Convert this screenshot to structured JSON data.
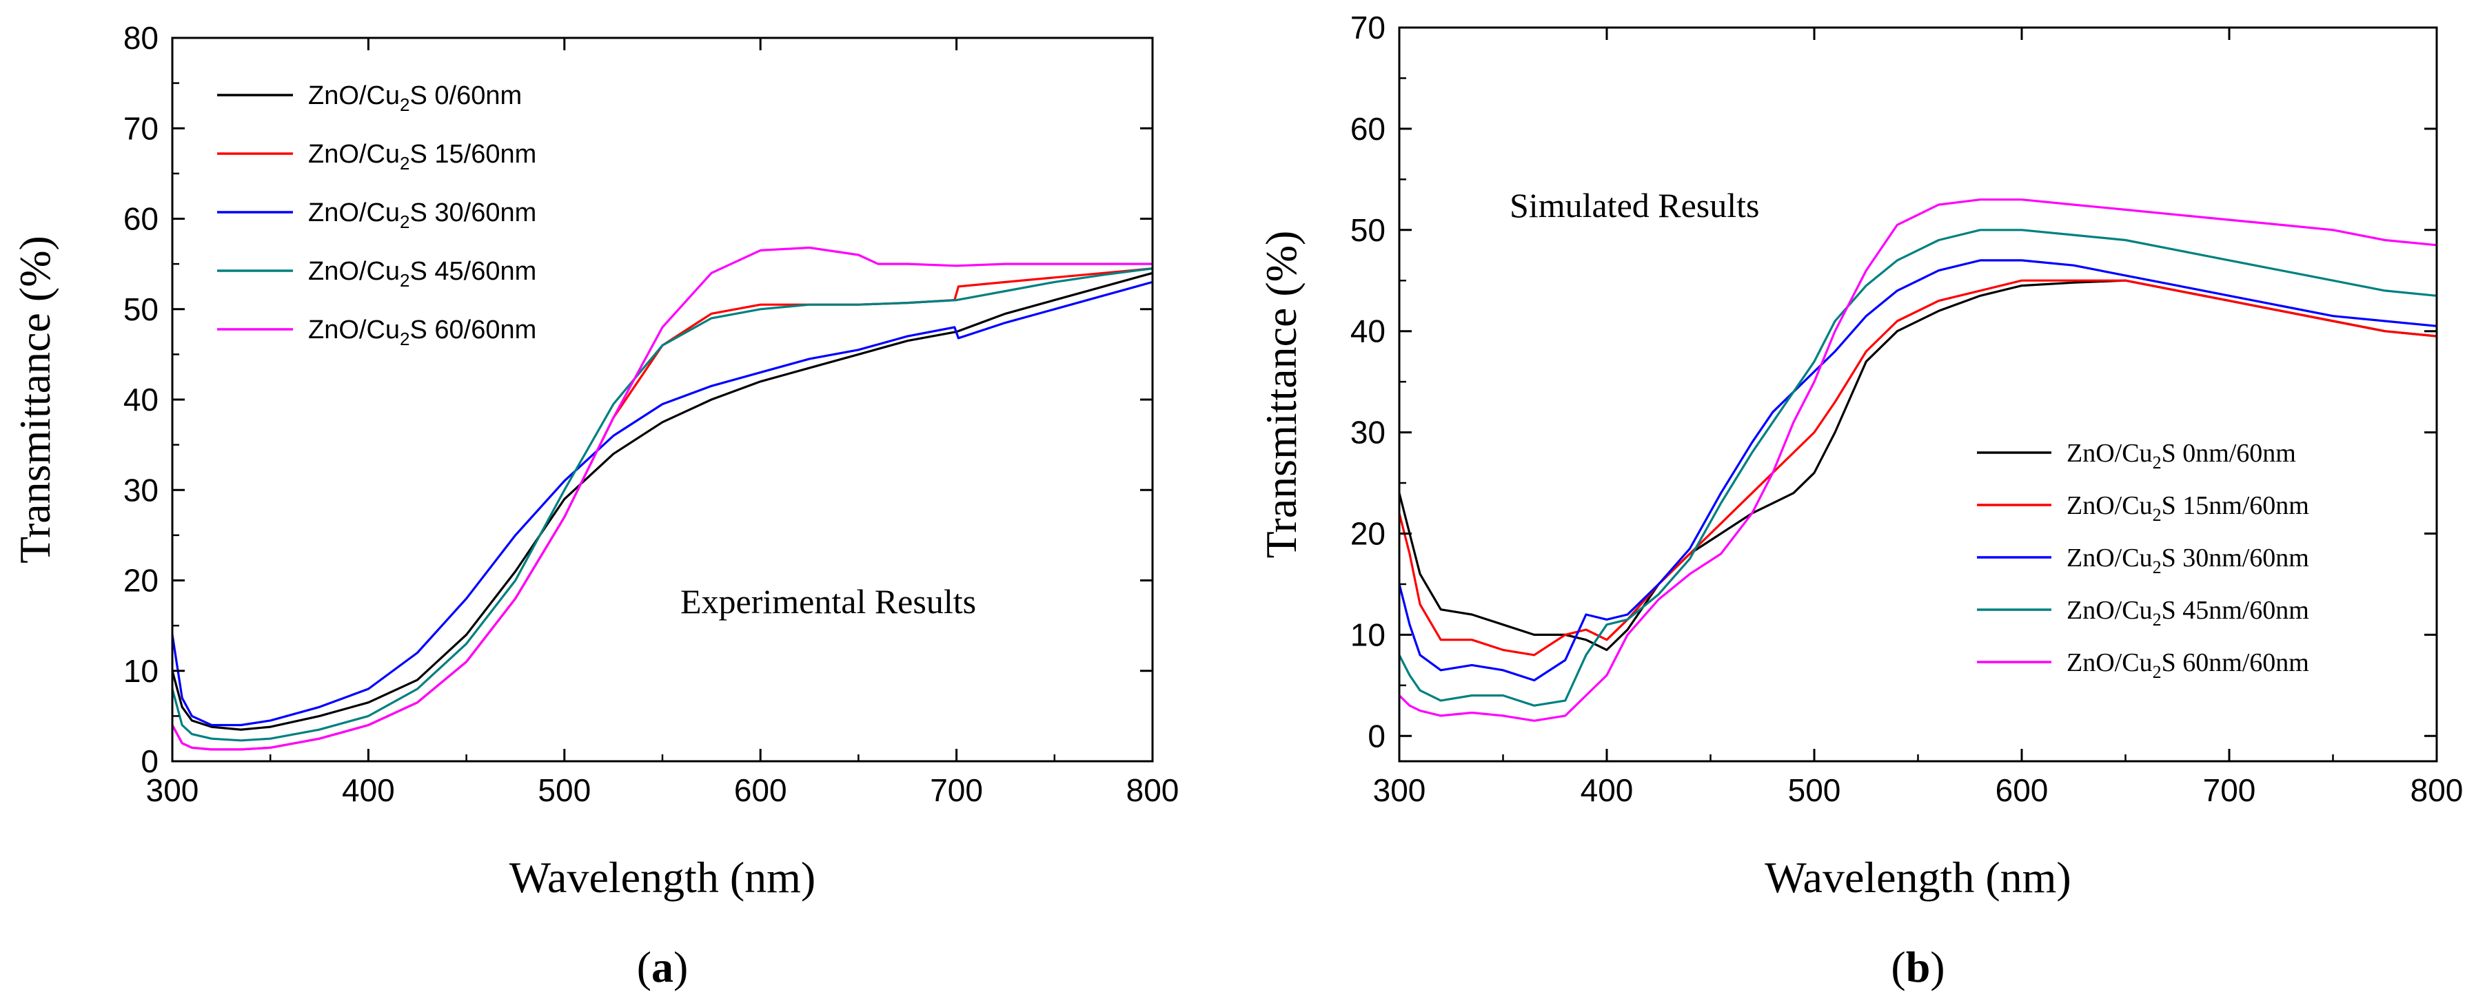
{
  "chart_data": [
    {
      "type": "line",
      "panel_label": "a",
      "xlabel": "Wavelength (nm)",
      "ylabel": "Transmittance (%)",
      "annotation": "Experimental Results",
      "xlim": [
        300,
        800
      ],
      "ylim": [
        0,
        80
      ],
      "xticks": [
        300,
        400,
        500,
        600,
        700,
        800
      ],
      "yticks": [
        0,
        10,
        20,
        30,
        40,
        50,
        60,
        70,
        80
      ],
      "legend_position": "top-left",
      "legend_style": "sans",
      "series": [
        {
          "name": "ZnO/Cu2S 0/60nm",
          "label_pre": "ZnO/Cu",
          "label_sub": "2",
          "label_post": "S 0/60nm",
          "color": "#000000",
          "x": [
            300,
            305,
            310,
            320,
            335,
            350,
            375,
            400,
            425,
            450,
            475,
            500,
            525,
            550,
            575,
            600,
            625,
            650,
            675,
            700,
            725,
            750,
            775,
            800
          ],
          "y": [
            10,
            6,
            4.5,
            3.8,
            3.5,
            3.8,
            5,
            6.5,
            9,
            14,
            21,
            29,
            34,
            37.5,
            40,
            42,
            43.5,
            45,
            46.5,
            47.5,
            49.5,
            51,
            52.5,
            54
          ]
        },
        {
          "name": "ZnO/Cu2S 15/60nm",
          "label_pre": "ZnO/Cu",
          "label_sub": "2",
          "label_post": "S 15/60nm",
          "color": "#ff0000",
          "x": [
            300,
            305,
            310,
            320,
            335,
            350,
            375,
            400,
            425,
            450,
            475,
            500,
            525,
            550,
            575,
            600,
            625,
            650,
            675,
            699,
            701,
            725,
            750,
            775,
            800
          ],
          "y": [
            4,
            2,
            1.5,
            1.3,
            1.3,
            1.5,
            2.5,
            4,
            6.5,
            11,
            18,
            27,
            38,
            46,
            49.5,
            50.5,
            50.5,
            50.5,
            50.7,
            51,
            52.5,
            53,
            53.5,
            54,
            54.5
          ]
        },
        {
          "name": "ZnO/Cu2S 30/60nm",
          "label_pre": "ZnO/Cu",
          "label_sub": "2",
          "label_post": "S 30/60nm",
          "color": "#0000ff",
          "x": [
            300,
            305,
            310,
            320,
            335,
            350,
            375,
            400,
            425,
            450,
            475,
            500,
            525,
            550,
            575,
            600,
            625,
            650,
            675,
            699,
            701,
            725,
            750,
            775,
            800
          ],
          "y": [
            14,
            7,
            5,
            4,
            4,
            4.5,
            6,
            8,
            12,
            18,
            25,
            31,
            36,
            39.5,
            41.5,
            43,
            44.5,
            45.5,
            47,
            48,
            46.8,
            48.5,
            50,
            51.5,
            53
          ]
        },
        {
          "name": "ZnO/Cu2S 45/60nm",
          "label_pre": "ZnO/Cu",
          "label_sub": "2",
          "label_post": "S 45/60nm",
          "color": "#008080",
          "x": [
            300,
            305,
            310,
            320,
            335,
            350,
            375,
            400,
            425,
            450,
            475,
            500,
            525,
            550,
            575,
            600,
            625,
            650,
            675,
            700,
            725,
            750,
            775,
            800
          ],
          "y": [
            8,
            4,
            3,
            2.5,
            2.3,
            2.5,
            3.5,
            5,
            8,
            13,
            20,
            30,
            39.5,
            46,
            49,
            50,
            50.5,
            50.5,
            50.7,
            51,
            52,
            53,
            53.8,
            54.5
          ]
        },
        {
          "name": "ZnO/Cu2S 60/60nm",
          "label_pre": "ZnO/Cu",
          "label_sub": "2",
          "label_post": "S 60/60nm",
          "color": "#ff00ff",
          "x": [
            300,
            305,
            310,
            320,
            335,
            350,
            375,
            400,
            425,
            450,
            475,
            500,
            525,
            550,
            575,
            600,
            625,
            650,
            660,
            675,
            700,
            725,
            750,
            775,
            800
          ],
          "y": [
            4,
            2,
            1.5,
            1.3,
            1.3,
            1.5,
            2.5,
            4,
            6.5,
            11,
            18,
            27,
            38,
            48,
            54,
            56.5,
            56.8,
            56,
            55,
            55,
            54.8,
            55,
            55,
            55,
            55
          ]
        }
      ]
    },
    {
      "type": "line",
      "panel_label": "b",
      "xlabel": "Wavelength (nm)",
      "ylabel": "Transmittance (%)",
      "annotation": "Simulated Results",
      "xlim": [
        300,
        800
      ],
      "ylim": [
        -2.5,
        70
      ],
      "xticks": [
        300,
        400,
        500,
        600,
        700,
        800
      ],
      "yticks": [
        0,
        10,
        20,
        30,
        40,
        50,
        60,
        70
      ],
      "legend_position": "bottom-right",
      "legend_style": "serif",
      "series": [
        {
          "name": "ZnO/Cu2S 0nm/60nm",
          "label_pre": "ZnO/Cu",
          "label_sub": "2",
          "label_post": "S 0nm/60nm",
          "color": "#000000",
          "x": [
            300,
            305,
            310,
            320,
            335,
            350,
            365,
            380,
            390,
            400,
            410,
            425,
            440,
            455,
            470,
            480,
            490,
            500,
            510,
            525,
            540,
            560,
            580,
            600,
            625,
            650,
            675,
            700,
            725,
            750,
            775,
            800
          ],
          "y": [
            24,
            20,
            16,
            12.5,
            12,
            11,
            10,
            10,
            9.5,
            8.5,
            10.5,
            15,
            18,
            20,
            22,
            23,
            24,
            26,
            30,
            37,
            40,
            42,
            43.5,
            44.5,
            44.8,
            45,
            44,
            43,
            42,
            41,
            40,
            39.5
          ]
        },
        {
          "name": "ZnO/Cu2S 15nm/60nm",
          "label_pre": "ZnO/Cu",
          "label_sub": "2",
          "label_post": "S 15nm/60nm",
          "color": "#ff0000",
          "x": [
            300,
            305,
            310,
            320,
            335,
            350,
            365,
            380,
            390,
            400,
            410,
            425,
            440,
            455,
            470,
            480,
            490,
            500,
            510,
            525,
            540,
            560,
            580,
            600,
            625,
            650,
            675,
            700,
            725,
            750,
            775,
            800
          ],
          "y": [
            22,
            18,
            13,
            9.5,
            9.5,
            8.5,
            8,
            10,
            10.5,
            9.5,
            11.5,
            15,
            18,
            21,
            24,
            26,
            28,
            30,
            33,
            38,
            41,
            43,
            44,
            45,
            45,
            45,
            44,
            43,
            42,
            41,
            40,
            39.5
          ]
        },
        {
          "name": "ZnO/Cu2S 30nm/60nm",
          "label_pre": "ZnO/Cu",
          "label_sub": "2",
          "label_post": "S 30nm/60nm",
          "color": "#0000ff",
          "x": [
            300,
            305,
            310,
            320,
            335,
            350,
            365,
            380,
            390,
            400,
            410,
            425,
            440,
            455,
            470,
            480,
            490,
            500,
            510,
            525,
            540,
            560,
            580,
            600,
            625,
            650,
            675,
            700,
            725,
            750,
            775,
            800
          ],
          "y": [
            15,
            11,
            8,
            6.5,
            7,
            6.5,
            5.5,
            7.5,
            12,
            11.5,
            12,
            15,
            18.5,
            24,
            29,
            32,
            34,
            36,
            38,
            41.5,
            44,
            46,
            47,
            47,
            46.5,
            45.5,
            44.5,
            43.5,
            42.5,
            41.5,
            41,
            40.5
          ]
        },
        {
          "name": "ZnO/Cu2S 45nm/60nm",
          "label_pre": "ZnO/Cu",
          "label_sub": "2",
          "label_post": "S 45nm/60nm",
          "color": "#008080",
          "x": [
            300,
            305,
            310,
            320,
            335,
            350,
            365,
            380,
            390,
            400,
            410,
            425,
            440,
            455,
            470,
            480,
            490,
            500,
            510,
            525,
            540,
            560,
            580,
            600,
            625,
            650,
            675,
            700,
            725,
            750,
            775,
            800
          ],
          "y": [
            8,
            6,
            4.5,
            3.5,
            4,
            4,
            3,
            3.5,
            8,
            11,
            11.5,
            14,
            17.5,
            23,
            28,
            31,
            34,
            37,
            41,
            44.5,
            47,
            49,
            50,
            50,
            49.5,
            49,
            48,
            47,
            46,
            45,
            44,
            43.5
          ]
        },
        {
          "name": "ZnO/Cu2S 60nm/60nm",
          "label_pre": "ZnO/Cu",
          "label_sub": "2",
          "label_post": "S 60nm/60nm",
          "color": "#ff00ff",
          "x": [
            300,
            305,
            310,
            320,
            335,
            350,
            365,
            380,
            390,
            400,
            410,
            425,
            440,
            455,
            470,
            480,
            490,
            500,
            510,
            525,
            540,
            560,
            580,
            600,
            625,
            650,
            675,
            700,
            725,
            750,
            775,
            800
          ],
          "y": [
            4,
            3,
            2.5,
            2,
            2.3,
            2,
            1.5,
            2,
            4,
            6,
            10,
            13.5,
            16,
            18,
            22,
            26,
            31,
            35,
            40,
            46,
            50.5,
            52.5,
            53,
            53,
            52.5,
            52,
            51.5,
            51,
            50.5,
            50,
            49,
            48.5
          ]
        }
      ]
    }
  ]
}
